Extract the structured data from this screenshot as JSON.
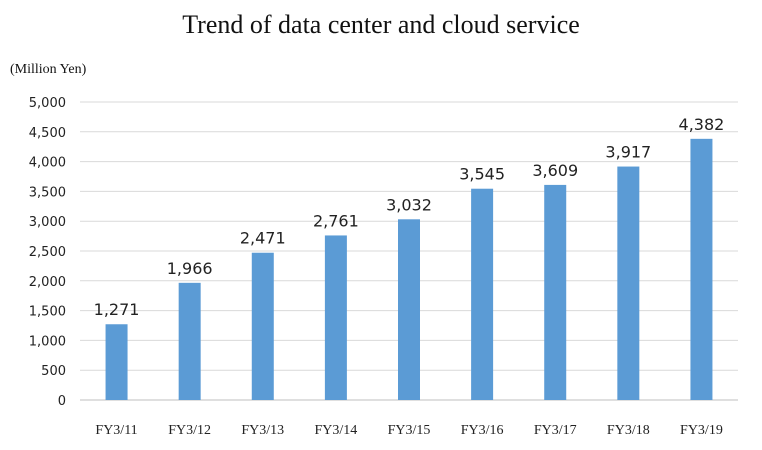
{
  "chart_data": {
    "type": "bar",
    "title": "Trend of data center and cloud service",
    "unit_label": "(Million Yen)",
    "categories": [
      "FY3/11",
      "FY3/12",
      "FY3/13",
      "FY3/14",
      "FY3/15",
      "FY3/16",
      "FY3/17",
      "FY3/18",
      "FY3/19"
    ],
    "values": [
      1271,
      1966,
      2471,
      2761,
      3032,
      3545,
      3609,
      3917,
      4382
    ],
    "data_labels": [
      "1,271",
      "1,966",
      "2,471",
      "2,761",
      "3,032",
      "3,545",
      "3,609",
      "3,917",
      "4,382"
    ],
    "ylim": [
      0,
      5000
    ],
    "yticks": [
      0,
      500,
      1000,
      1500,
      2000,
      2500,
      3000,
      3500,
      4000,
      4500,
      5000
    ],
    "ytick_labels": [
      "0",
      "500",
      "1,000",
      "1,500",
      "2,000",
      "2,500",
      "3,000",
      "3,500",
      "4,000",
      "4,500",
      "5,000"
    ],
    "grid": true,
    "bar_color": "#5b9bd5",
    "grid_color": "#d9d9d9"
  }
}
